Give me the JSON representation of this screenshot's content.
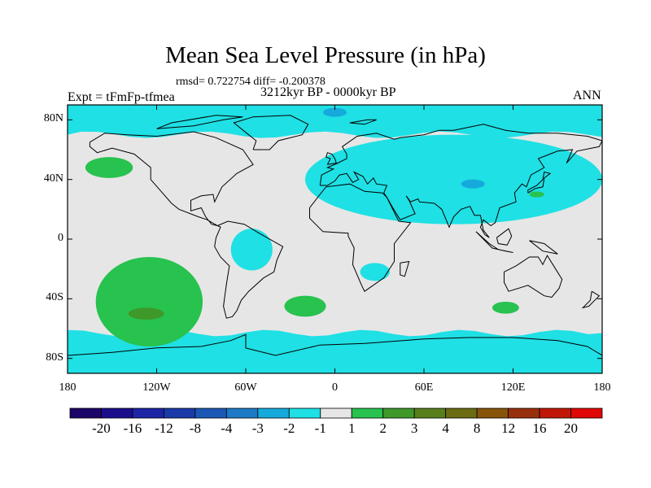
{
  "title": "Mean Sea Level Pressure (in hPa)",
  "stats": "rmsd= 0.722754 diff= -0.200378",
  "expt": "Expt = tFmFp-tfmea",
  "period": "3212kyr BP - 0000kyr BP",
  "season": "ANN",
  "chart_data": {
    "type": "heatmap",
    "title": "Mean Sea Level Pressure (in hPa)",
    "projection": "cylindrical equidistant",
    "x_range": [
      -180,
      180
    ],
    "y_range": [
      -90,
      90
    ],
    "x_ticks": [
      {
        "value": -180,
        "label": "180"
      },
      {
        "value": -120,
        "label": "120W"
      },
      {
        "value": -60,
        "label": "60W"
      },
      {
        "value": 0,
        "label": "0"
      },
      {
        "value": 60,
        "label": "60E"
      },
      {
        "value": 120,
        "label": "120E"
      },
      {
        "value": 180,
        "label": "180"
      }
    ],
    "y_ticks": [
      {
        "value": 80,
        "label": "80N"
      },
      {
        "value": 40,
        "label": "40N"
      },
      {
        "value": 0,
        "label": "0"
      },
      {
        "value": -40,
        "label": "40S"
      },
      {
        "value": -80,
        "label": "80S"
      }
    ],
    "colorbar": {
      "colors": [
        "#1b0568",
        "#1a0e8c",
        "#1d24a5",
        "#1a3aa8",
        "#1b58b5",
        "#1c7ac6",
        "#16a9dc",
        "#1fe0e4",
        "#e6e6e6",
        "#28c24f",
        "#3f982a",
        "#597f1c",
        "#6b6b12",
        "#875409",
        "#98300d",
        "#c01709",
        "#e00606"
      ],
      "labels": [
        "-20",
        "-16",
        "-12",
        "-8",
        "-4",
        "-3",
        "-2",
        "-1",
        "1",
        "2",
        "3",
        "4",
        "8",
        "12",
        "16",
        "20"
      ]
    },
    "background_value_range": [
      -1,
      1
    ],
    "regions": [
      {
        "level": "-2 to -1",
        "name": "Arctic and northern high latitudes",
        "shape": "band",
        "lat_range": [
          70,
          90
        ],
        "lon_range": [
          -180,
          180
        ]
      },
      {
        "level": "-2 to -1",
        "name": "Southern Ocean / Antarctica",
        "shape": "band",
        "lat_range": [
          -90,
          -63
        ],
        "lon_range": [
          -180,
          180
        ]
      },
      {
        "level": "-2 to -1",
        "name": "Eurasia",
        "shape": "blob",
        "center": [
          80,
          40
        ],
        "extent": [
          100,
          30
        ]
      },
      {
        "level": "-2 to -1",
        "name": "Central South America",
        "shape": "blob",
        "center": [
          -56,
          -7
        ],
        "extent": [
          14,
          14
        ]
      },
      {
        "level": "-2 to -1",
        "name": "Southern Africa",
        "shape": "blob",
        "center": [
          27,
          -22
        ],
        "extent": [
          10,
          6
        ]
      },
      {
        "level": "-3 to -2",
        "name": "Central Asia",
        "shape": "blob",
        "center": [
          93,
          37
        ],
        "extent": [
          8,
          3
        ]
      },
      {
        "level": "-3 to -2",
        "name": "Arctic spot",
        "shape": "blob",
        "center": [
          0,
          85
        ],
        "extent": [
          8,
          3
        ]
      },
      {
        "level": "1 to 2",
        "name": "North Pacific",
        "shape": "blob",
        "center": [
          -152,
          48
        ],
        "extent": [
          16,
          7
        ]
      },
      {
        "level": "1 to 2",
        "name": "South Pacific",
        "shape": "blob",
        "center": [
          -125,
          -42
        ],
        "extent": [
          36,
          30
        ]
      },
      {
        "level": "1 to 2",
        "name": "South Atlantic",
        "shape": "blob",
        "center": [
          -20,
          -45
        ],
        "extent": [
          14,
          7
        ]
      },
      {
        "level": "1 to 2",
        "name": "South Indian Ocean",
        "shape": "blob",
        "center": [
          115,
          -46
        ],
        "extent": [
          9,
          4
        ]
      },
      {
        "level": "1 to 2",
        "name": "Northwest Pacific",
        "shape": "blob",
        "center": [
          136,
          30
        ],
        "extent": [
          5,
          2
        ]
      },
      {
        "level": "2 to 3",
        "name": "South Pacific core",
        "shape": "blob",
        "center": [
          -127,
          -50
        ],
        "extent": [
          12,
          4
        ]
      }
    ]
  }
}
